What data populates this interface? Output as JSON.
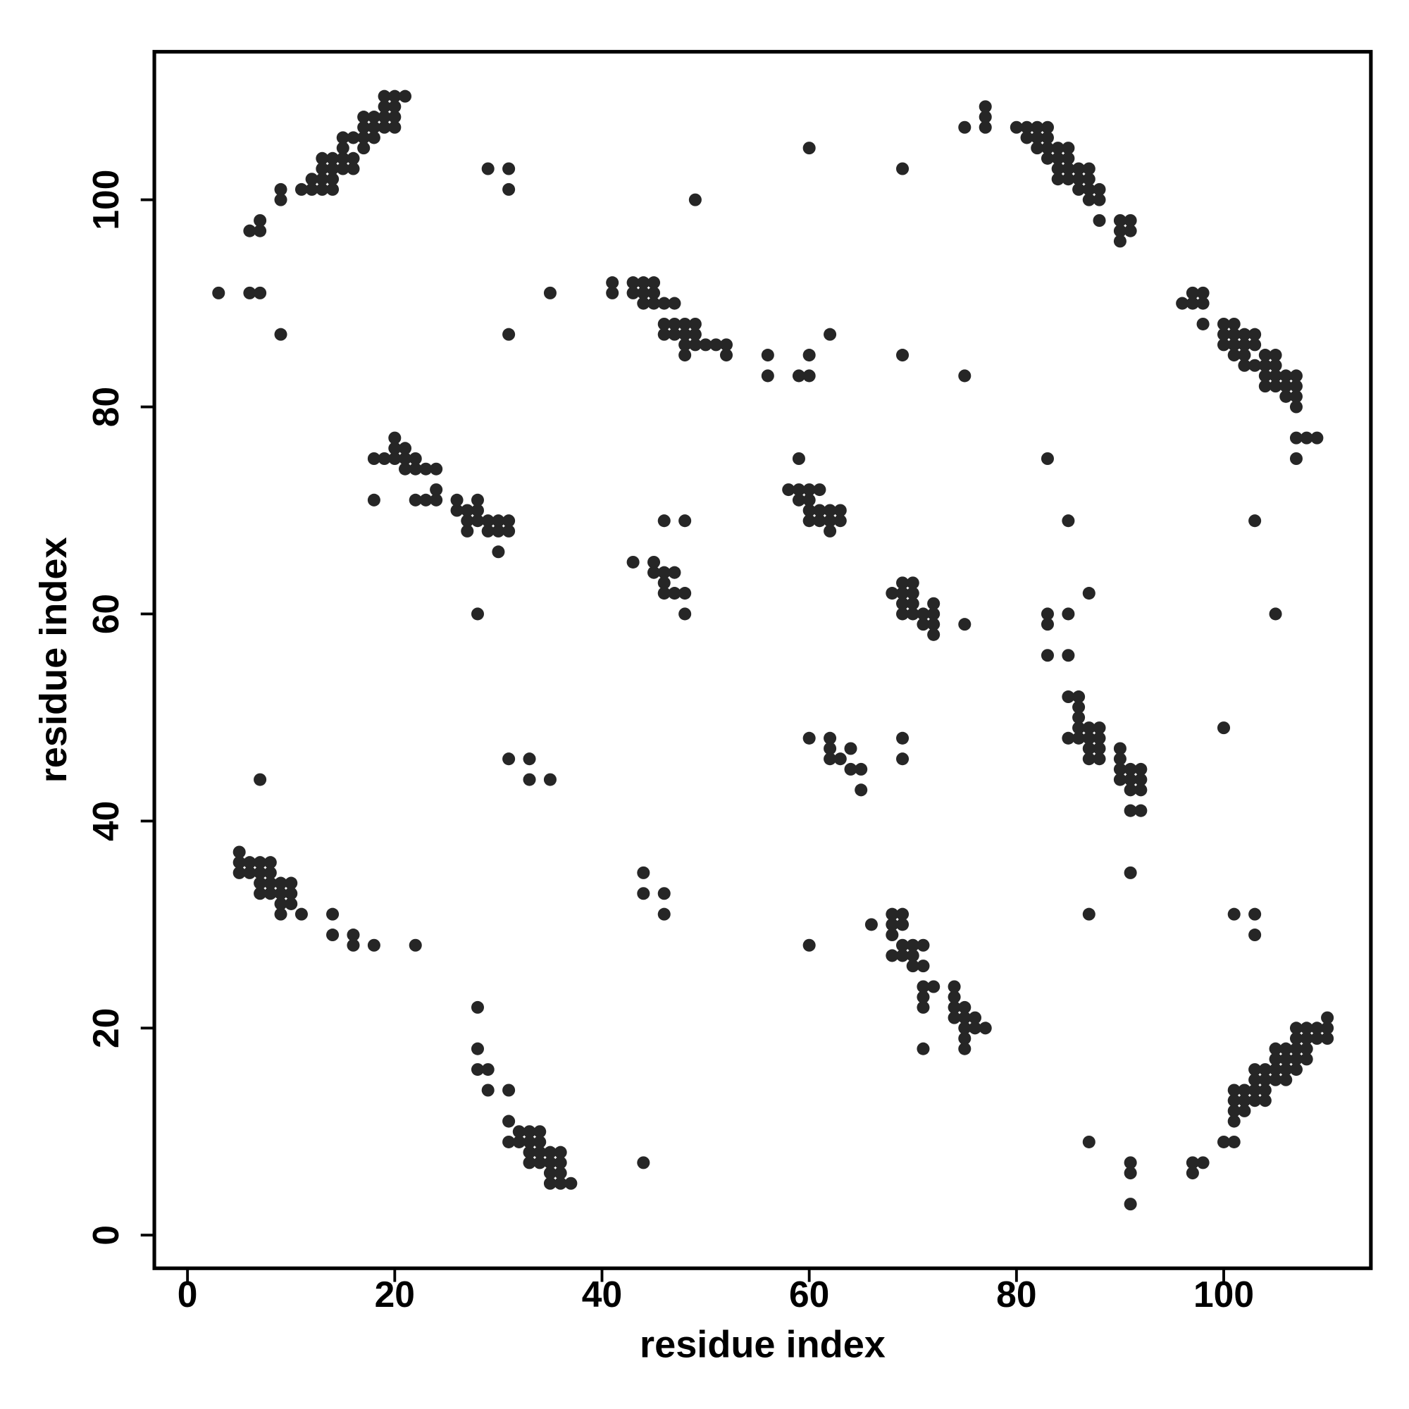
{
  "chart_data": {
    "type": "scatter",
    "xlabel": "residue index",
    "ylabel": "residue index",
    "xlim": [
      -3.2,
      114.2
    ],
    "ylim": [
      -3.2,
      114.3
    ],
    "xticks": [
      0,
      20,
      40,
      60,
      80,
      100
    ],
    "yticks": [
      0,
      20,
      40,
      60,
      80,
      100
    ],
    "color": "#262626",
    "points": [
      [
        6,
        97
      ],
      [
        7,
        97
      ],
      [
        7,
        98
      ],
      [
        9,
        100
      ],
      [
        9,
        101
      ],
      [
        11,
        101
      ],
      [
        12,
        101
      ],
      [
        12,
        102
      ],
      [
        13,
        101
      ],
      [
        13,
        102
      ],
      [
        13,
        103
      ],
      [
        13,
        104
      ],
      [
        14,
        101
      ],
      [
        14,
        102
      ],
      [
        14,
        103
      ],
      [
        14,
        104
      ],
      [
        15,
        103
      ],
      [
        15,
        104
      ],
      [
        15,
        105
      ],
      [
        15,
        106
      ],
      [
        16,
        103
      ],
      [
        16,
        104
      ],
      [
        16,
        106
      ],
      [
        17,
        105
      ],
      [
        17,
        106
      ],
      [
        17,
        107
      ],
      [
        17,
        108
      ],
      [
        18,
        106
      ],
      [
        18,
        107
      ],
      [
        18,
        108
      ],
      [
        19,
        107
      ],
      [
        19,
        108
      ],
      [
        19,
        109
      ],
      [
        19,
        110
      ],
      [
        20,
        107
      ],
      [
        20,
        108
      ],
      [
        20,
        109
      ],
      [
        20,
        110
      ],
      [
        21,
        110
      ],
      [
        3,
        91
      ],
      [
        6,
        91
      ],
      [
        7,
        91
      ],
      [
        9,
        87
      ],
      [
        29,
        103
      ],
      [
        31,
        103
      ],
      [
        31,
        101
      ],
      [
        35,
        91
      ],
      [
        31,
        87
      ],
      [
        49,
        100
      ],
      [
        41,
        91
      ],
      [
        41,
        92
      ],
      [
        43,
        91
      ],
      [
        43,
        92
      ],
      [
        44,
        90
      ],
      [
        44,
        91
      ],
      [
        44,
        92
      ],
      [
        45,
        90
      ],
      [
        45,
        91
      ],
      [
        45,
        92
      ],
      [
        46,
        88
      ],
      [
        46,
        87
      ],
      [
        46,
        90
      ],
      [
        47,
        87
      ],
      [
        47,
        88
      ],
      [
        47,
        90
      ],
      [
        48,
        85
      ],
      [
        48,
        86
      ],
      [
        48,
        87
      ],
      [
        48,
        88
      ],
      [
        49,
        86
      ],
      [
        49,
        87
      ],
      [
        49,
        88
      ],
      [
        50,
        86
      ],
      [
        51,
        86
      ],
      [
        52,
        85
      ],
      [
        52,
        86
      ],
      [
        56,
        83
      ],
      [
        56,
        85
      ],
      [
        59,
        83
      ],
      [
        60,
        83
      ],
      [
        60,
        85
      ],
      [
        60,
        105
      ],
      [
        62,
        87
      ],
      [
        69,
        103
      ],
      [
        69,
        85
      ],
      [
        75,
        83
      ],
      [
        75,
        107
      ],
      [
        77,
        107
      ],
      [
        77,
        108
      ],
      [
        77,
        109
      ],
      [
        80,
        107
      ],
      [
        81,
        106
      ],
      [
        81,
        107
      ],
      [
        82,
        105
      ],
      [
        82,
        106
      ],
      [
        82,
        107
      ],
      [
        83,
        104
      ],
      [
        83,
        105
      ],
      [
        83,
        106
      ],
      [
        83,
        107
      ],
      [
        84,
        102
      ],
      [
        84,
        103
      ],
      [
        84,
        104
      ],
      [
        84,
        105
      ],
      [
        85,
        102
      ],
      [
        85,
        103
      ],
      [
        85,
        104
      ],
      [
        85,
        105
      ],
      [
        86,
        101
      ],
      [
        86,
        102
      ],
      [
        86,
        103
      ],
      [
        87,
        100
      ],
      [
        87,
        101
      ],
      [
        87,
        102
      ],
      [
        87,
        103
      ],
      [
        88,
        98
      ],
      [
        88,
        100
      ],
      [
        88,
        101
      ],
      [
        90,
        96
      ],
      [
        90,
        97
      ],
      [
        90,
        98
      ],
      [
        91,
        97
      ],
      [
        91,
        98
      ],
      [
        96,
        90
      ],
      [
        97,
        90
      ],
      [
        97,
        91
      ],
      [
        98,
        88
      ],
      [
        98,
        90
      ],
      [
        98,
        91
      ],
      [
        100,
        86
      ],
      [
        100,
        87
      ],
      [
        100,
        88
      ],
      [
        101,
        85
      ],
      [
        101,
        86
      ],
      [
        101,
        87
      ],
      [
        101,
        88
      ],
      [
        102,
        84
      ],
      [
        102,
        85
      ],
      [
        102,
        86
      ],
      [
        102,
        87
      ],
      [
        103,
        84
      ],
      [
        103,
        86
      ],
      [
        103,
        87
      ],
      [
        104,
        82
      ],
      [
        104,
        83
      ],
      [
        104,
        84
      ],
      [
        104,
        85
      ],
      [
        105,
        82
      ],
      [
        105,
        83
      ],
      [
        105,
        84
      ],
      [
        105,
        85
      ],
      [
        106,
        81
      ],
      [
        106,
        82
      ],
      [
        106,
        83
      ],
      [
        107,
        80
      ],
      [
        107,
        81
      ],
      [
        107,
        82
      ],
      [
        107,
        83
      ],
      [
        107,
        75
      ],
      [
        107,
        77
      ],
      [
        108,
        77
      ],
      [
        109,
        77
      ],
      [
        18,
        75
      ],
      [
        18,
        71
      ],
      [
        19,
        75
      ],
      [
        20,
        75
      ],
      [
        20,
        76
      ],
      [
        20,
        77
      ],
      [
        21,
        74
      ],
      [
        21,
        75
      ],
      [
        21,
        76
      ],
      [
        22,
        71
      ],
      [
        22,
        74
      ],
      [
        22,
        75
      ],
      [
        23,
        71
      ],
      [
        23,
        74
      ],
      [
        24,
        71
      ],
      [
        24,
        72
      ],
      [
        24,
        74
      ],
      [
        26,
        70
      ],
      [
        26,
        71
      ],
      [
        27,
        68
      ],
      [
        27,
        69
      ],
      [
        27,
        70
      ],
      [
        28,
        69
      ],
      [
        28,
        70
      ],
      [
        28,
        71
      ],
      [
        29,
        68
      ],
      [
        29,
        69
      ],
      [
        30,
        66
      ],
      [
        30,
        68
      ],
      [
        30,
        69
      ],
      [
        31,
        68
      ],
      [
        31,
        69
      ],
      [
        28,
        60
      ],
      [
        58,
        72
      ],
      [
        59,
        71
      ],
      [
        59,
        72
      ],
      [
        59,
        75
      ],
      [
        60,
        69
      ],
      [
        60,
        70
      ],
      [
        60,
        71
      ],
      [
        60,
        72
      ],
      [
        61,
        69
      ],
      [
        61,
        70
      ],
      [
        61,
        72
      ],
      [
        62,
        68
      ],
      [
        62,
        69
      ],
      [
        62,
        70
      ],
      [
        63,
        69
      ],
      [
        63,
        70
      ],
      [
        43,
        65
      ],
      [
        45,
        64
      ],
      [
        45,
        65
      ],
      [
        46,
        62
      ],
      [
        46,
        63
      ],
      [
        46,
        64
      ],
      [
        46,
        69
      ],
      [
        47,
        62
      ],
      [
        47,
        64
      ],
      [
        48,
        60
      ],
      [
        48,
        62
      ],
      [
        48,
        69
      ],
      [
        68,
        62
      ],
      [
        69,
        60
      ],
      [
        69,
        61
      ],
      [
        69,
        62
      ],
      [
        69,
        63
      ],
      [
        70,
        60
      ],
      [
        70,
        61
      ],
      [
        70,
        62
      ],
      [
        70,
        63
      ],
      [
        71,
        59
      ],
      [
        71,
        60
      ],
      [
        72,
        58
      ],
      [
        72,
        59
      ],
      [
        72,
        60
      ],
      [
        72,
        61
      ],
      [
        75,
        59
      ],
      [
        83,
        75
      ],
      [
        85,
        69
      ],
      [
        87,
        62
      ],
      [
        103,
        69
      ],
      [
        105,
        60
      ],
      [
        83,
        59
      ],
      [
        83,
        60
      ],
      [
        85,
        60
      ],
      [
        83,
        56
      ],
      [
        85,
        56
      ],
      [
        85,
        48
      ],
      [
        85,
        52
      ],
      [
        86,
        48
      ],
      [
        86,
        49
      ],
      [
        86,
        50
      ],
      [
        86,
        51
      ],
      [
        86,
        52
      ],
      [
        87,
        46
      ],
      [
        87,
        47
      ],
      [
        87,
        48
      ],
      [
        87,
        49
      ],
      [
        88,
        46
      ],
      [
        88,
        47
      ],
      [
        88,
        48
      ],
      [
        88,
        49
      ],
      [
        90,
        44
      ],
      [
        90,
        45
      ],
      [
        90,
        46
      ],
      [
        90,
        47
      ],
      [
        91,
        41
      ],
      [
        91,
        43
      ],
      [
        91,
        44
      ],
      [
        91,
        45
      ],
      [
        92,
        41
      ],
      [
        92,
        43
      ],
      [
        92,
        44
      ],
      [
        92,
        45
      ],
      [
        100,
        49
      ],
      [
        91,
        35
      ],
      [
        60,
        48
      ],
      [
        62,
        46
      ],
      [
        62,
        47
      ],
      [
        62,
        48
      ],
      [
        63,
        46
      ],
      [
        64,
        45
      ],
      [
        64,
        47
      ],
      [
        65,
        43
      ],
      [
        65,
        45
      ],
      [
        69,
        46
      ],
      [
        69,
        48
      ],
      [
        5,
        35
      ],
      [
        5,
        36
      ],
      [
        5,
        37
      ],
      [
        6,
        35
      ],
      [
        6,
        36
      ],
      [
        7,
        33
      ],
      [
        7,
        34
      ],
      [
        7,
        35
      ],
      [
        7,
        36
      ],
      [
        8,
        33
      ],
      [
        8,
        34
      ],
      [
        8,
        35
      ],
      [
        8,
        36
      ],
      [
        9,
        31
      ],
      [
        9,
        32
      ],
      [
        9,
        33
      ],
      [
        9,
        34
      ],
      [
        10,
        32
      ],
      [
        10,
        33
      ],
      [
        10,
        34
      ],
      [
        11,
        31
      ],
      [
        14,
        29
      ],
      [
        14,
        31
      ],
      [
        16,
        28
      ],
      [
        16,
        29
      ],
      [
        18,
        28
      ],
      [
        22,
        28
      ],
      [
        7,
        44
      ],
      [
        31,
        46
      ],
      [
        33,
        44
      ],
      [
        33,
        46
      ],
      [
        35,
        44
      ],
      [
        44,
        33
      ],
      [
        44,
        35
      ],
      [
        46,
        31
      ],
      [
        46,
        33
      ],
      [
        60,
        28
      ],
      [
        66,
        30
      ],
      [
        68,
        27
      ],
      [
        68,
        29
      ],
      [
        68,
        30
      ],
      [
        68,
        31
      ],
      [
        69,
        27
      ],
      [
        69,
        28
      ],
      [
        69,
        30
      ],
      [
        69,
        31
      ],
      [
        70,
        26
      ],
      [
        70,
        27
      ],
      [
        70,
        28
      ],
      [
        71,
        22
      ],
      [
        71,
        23
      ],
      [
        71,
        24
      ],
      [
        71,
        26
      ],
      [
        71,
        28
      ],
      [
        71,
        18
      ],
      [
        72,
        24
      ],
      [
        74,
        21
      ],
      [
        74,
        22
      ],
      [
        74,
        23
      ],
      [
        74,
        24
      ],
      [
        75,
        18
      ],
      [
        75,
        19
      ],
      [
        75,
        20
      ],
      [
        75,
        21
      ],
      [
        75,
        22
      ],
      [
        76,
        20
      ],
      [
        76,
        21
      ],
      [
        77,
        20
      ],
      [
        87,
        31
      ],
      [
        101,
        31
      ],
      [
        103,
        29
      ],
      [
        103,
        31
      ],
      [
        28,
        22
      ],
      [
        28,
        18
      ],
      [
        28,
        16
      ],
      [
        29,
        16
      ],
      [
        29,
        14
      ],
      [
        31,
        14
      ],
      [
        31,
        11
      ],
      [
        31,
        9
      ],
      [
        32,
        9
      ],
      [
        32,
        10
      ],
      [
        33,
        7
      ],
      [
        33,
        8
      ],
      [
        33,
        9
      ],
      [
        33,
        10
      ],
      [
        34,
        7
      ],
      [
        34,
        8
      ],
      [
        34,
        9
      ],
      [
        34,
        10
      ],
      [
        35,
        5
      ],
      [
        35,
        6
      ],
      [
        35,
        7
      ],
      [
        35,
        8
      ],
      [
        36,
        5
      ],
      [
        36,
        6
      ],
      [
        36,
        7
      ],
      [
        36,
        8
      ],
      [
        37,
        5
      ],
      [
        44,
        7
      ],
      [
        87,
        9
      ],
      [
        91,
        3
      ],
      [
        91,
        6
      ],
      [
        91,
        7
      ],
      [
        97,
        6
      ],
      [
        97,
        7
      ],
      [
        98,
        7
      ],
      [
        100,
        9
      ],
      [
        101,
        9
      ],
      [
        101,
        11
      ],
      [
        101,
        12
      ],
      [
        101,
        13
      ],
      [
        101,
        14
      ],
      [
        102,
        12
      ],
      [
        102,
        13
      ],
      [
        102,
        14
      ],
      [
        103,
        13
      ],
      [
        103,
        14
      ],
      [
        103,
        15
      ],
      [
        103,
        16
      ],
      [
        104,
        13
      ],
      [
        104,
        14
      ],
      [
        104,
        15
      ],
      [
        104,
        16
      ],
      [
        105,
        15
      ],
      [
        105,
        16
      ],
      [
        105,
        17
      ],
      [
        105,
        18
      ],
      [
        106,
        15
      ],
      [
        106,
        16
      ],
      [
        106,
        17
      ],
      [
        106,
        18
      ],
      [
        107,
        16
      ],
      [
        107,
        17
      ],
      [
        107,
        18
      ],
      [
        107,
        19
      ],
      [
        107,
        20
      ],
      [
        108,
        17
      ],
      [
        108,
        18
      ],
      [
        108,
        19
      ],
      [
        108,
        20
      ],
      [
        109,
        19
      ],
      [
        109,
        20
      ],
      [
        110,
        19
      ],
      [
        110,
        20
      ],
      [
        110,
        21
      ]
    ]
  }
}
